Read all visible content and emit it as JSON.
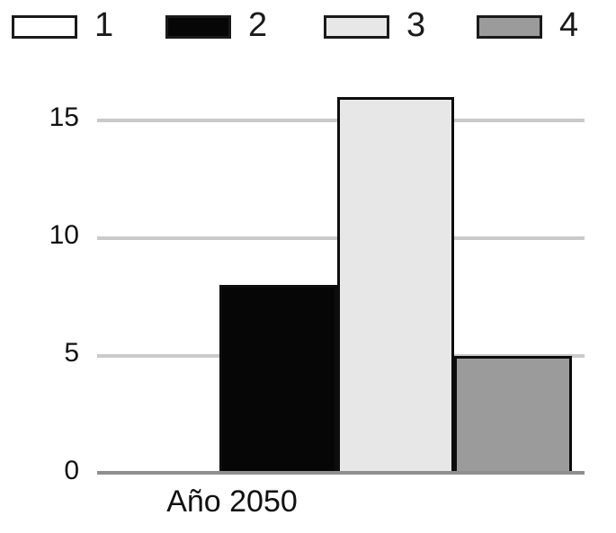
{
  "chart_data": {
    "type": "bar",
    "categories": [
      "Año 2050"
    ],
    "series": [
      {
        "name": "1",
        "color": "#ffffff",
        "values": [
          0
        ]
      },
      {
        "name": "2",
        "color": "#060606",
        "values": [
          8
        ]
      },
      {
        "name": "3",
        "color": "#e7e7e7",
        "values": [
          16
        ]
      },
      {
        "name": "4",
        "color": "#9b9b9b",
        "values": [
          5
        ]
      }
    ],
    "title": "",
    "xlabel": "Año 2050",
    "ylabel": "",
    "yticks": [
      0,
      5,
      10,
      15
    ],
    "ylim": [
      0,
      16.5
    ],
    "grid": true,
    "legend_position": "top",
    "colors": {
      "gridline": "#cacaca",
      "axis_line": "#8e8e8e",
      "bar_border": "#0d0d0d",
      "swatch_border": "#1a1a1a",
      "text": "#1a1a1a"
    }
  }
}
